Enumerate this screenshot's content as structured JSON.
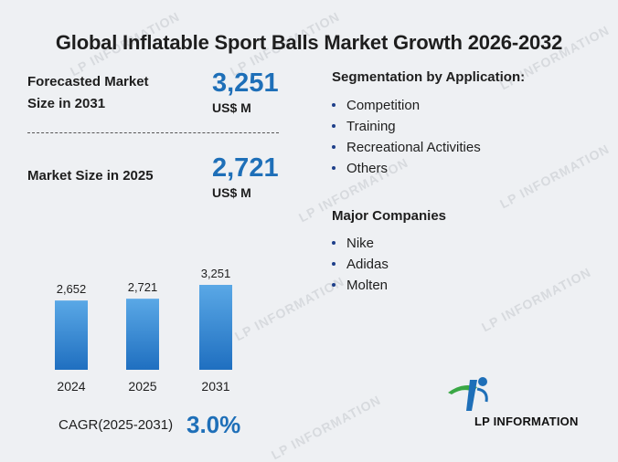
{
  "title": "Global Inflatable Sport Balls Market Growth 2026-2032",
  "forecast": {
    "label_line1": "Forecasted Market",
    "label_line2": "Size in 2031",
    "value": "3,251",
    "unit": "US$ M"
  },
  "current": {
    "label": "Market Size in 2025",
    "value": "2,721",
    "unit": "US$ M"
  },
  "segmentation": {
    "heading": "Segmentation by Application:",
    "items": [
      "Competition",
      "Training",
      "Recreational Activities",
      "Others"
    ]
  },
  "companies": {
    "heading": "Major Companies",
    "items": [
      "Nike",
      "Adidas",
      "Molten"
    ]
  },
  "cagr": {
    "label": "CAGR(2025-2031)",
    "value": "3.0%"
  },
  "watermark": "LP INFORMATION",
  "logo_text": "LP INFORMATION",
  "colors": {
    "accent": "#1e6fb8",
    "bar_top": "#5aa8e6",
    "bar_bottom": "#1f6fc0",
    "logo_green": "#3aa845"
  },
  "chart_data": {
    "type": "bar",
    "categories": [
      "2024",
      "2025",
      "2031"
    ],
    "values": [
      2652,
      2721,
      3251
    ],
    "value_labels": [
      "2,652",
      "2,721",
      "3,251"
    ],
    "ylim": [
      0,
      3251
    ]
  }
}
